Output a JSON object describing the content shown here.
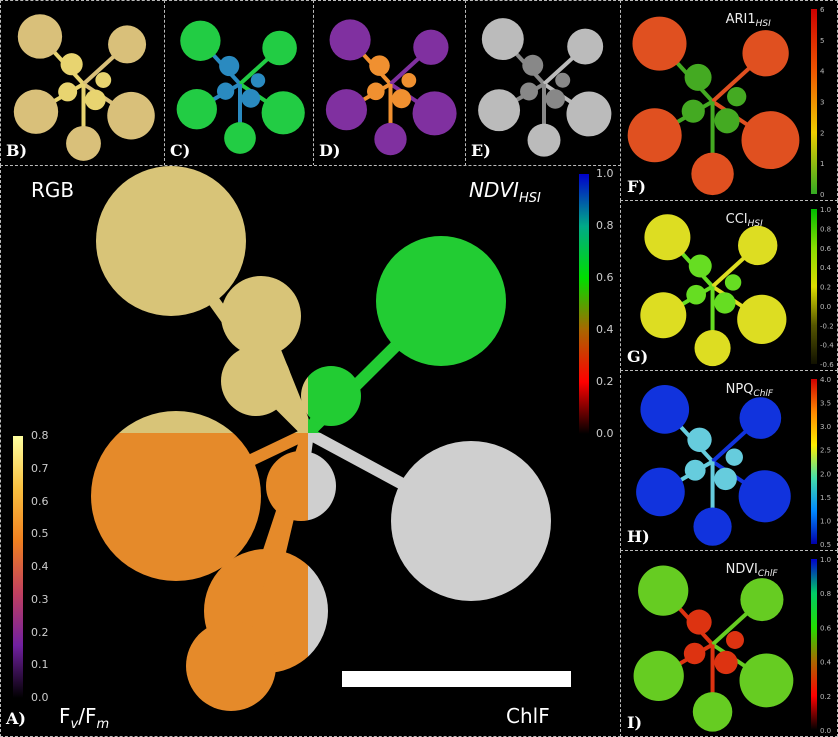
{
  "panels": {
    "A": {
      "label": "A)",
      "quadrants": {
        "top_left": "RGB",
        "top_right_main": "NDVI",
        "top_right_sub": "HSI",
        "bottom_left_main": "F",
        "bottom_left_sub1": "v",
        "bottom_left_mid": "/F",
        "bottom_left_sub2": "m",
        "bottom_right": "ChlF"
      },
      "ndvi_colorbar": {
        "ticks": [
          "1.0",
          "0.8",
          "0.6",
          "0.4",
          "0.2",
          "0.0"
        ],
        "colors": [
          "#0000cc",
          "#00aa88",
          "#00dd00",
          "#aa6600",
          "#ff0000",
          "#000000"
        ]
      },
      "fvfm_colorbar": {
        "ticks": [
          "0.8",
          "0.7",
          "0.6",
          "0.5",
          "0.4",
          "0.3",
          "0.2",
          "0.1",
          "0.0"
        ],
        "colors": [
          "#ffffa0",
          "#f9c040",
          "#f08020",
          "#c04060",
          "#7020a0",
          "#000000"
        ]
      }
    },
    "B": {
      "label": "B)"
    },
    "C": {
      "label": "C)"
    },
    "D": {
      "label": "D)"
    },
    "E": {
      "label": "E)"
    },
    "F": {
      "label": "F)",
      "title_main": "ARI1",
      "title_sub": "HSI",
      "ticks": [
        "6",
        "5",
        "4",
        "3",
        "2",
        "1",
        "0"
      ],
      "colors": [
        "#cc0000",
        "#ee5500",
        "#eecc00",
        "#33aa22"
      ]
    },
    "G": {
      "label": "G)",
      "title_main": "CCI",
      "title_sub": "HSI",
      "ticks": [
        "1.0",
        "0.8",
        "0.6",
        "0.4",
        "0.2",
        "0.0",
        "-0.2",
        "-0.4",
        "-0.6"
      ],
      "colors": [
        "#00bb00",
        "#88dd00",
        "#dddd00",
        "#555500",
        "#111100"
      ]
    },
    "H": {
      "label": "H)",
      "title_main": "NPQ",
      "title_sub": "ChlF",
      "ticks": [
        "4.0",
        "3.5",
        "3.0",
        "2.5",
        "2.0",
        "1.5",
        "1.0",
        "0.5"
      ],
      "colors": [
        "#cc0000",
        "#ff8800",
        "#ffee00",
        "#44ddaa",
        "#0088ff",
        "#0000aa"
      ]
    },
    "I": {
      "label": "I)",
      "title_main": "NDVI",
      "title_sub": "ChlF",
      "ticks": [
        "1.0",
        "0.8",
        "0.6",
        "0.4",
        "0.2",
        "0.0"
      ],
      "colors": [
        "#0000cc",
        "#00cc66",
        "#22dd00",
        "#aa6600",
        "#ff0000",
        "#000000"
      ]
    }
  }
}
